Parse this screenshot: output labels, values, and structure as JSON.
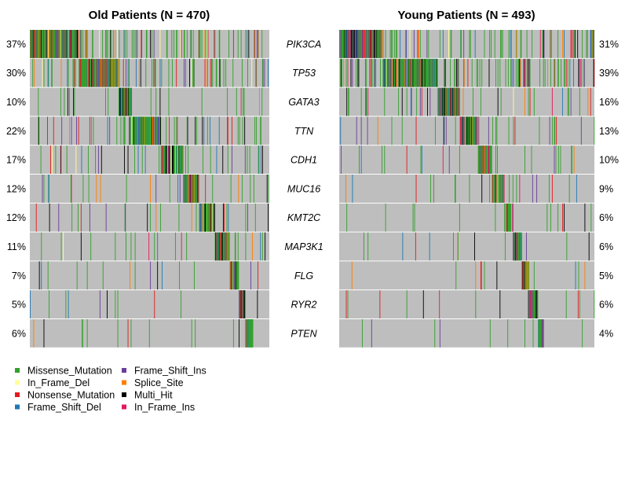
{
  "chart_data": {
    "type": "oncoplot",
    "genes": [
      "PIK3CA",
      "TP53",
      "GATA3",
      "TTN",
      "CDH1",
      "MUC16",
      "KMT2C",
      "MAP3K1",
      "FLG",
      "RYR2",
      "PTEN"
    ],
    "panels": [
      {
        "title": "Old Patients (N = 470)",
        "n": 470,
        "percent_labels": [
          "37%",
          "30%",
          "10%",
          "22%",
          "17%",
          "12%",
          "12%",
          "11%",
          "7%",
          "5%",
          "6%"
        ],
        "percent_values": [
          37,
          30,
          10,
          22,
          17,
          12,
          12,
          11,
          7,
          5,
          6
        ]
      },
      {
        "title": "Young Patients (N = 493)",
        "n": 493,
        "percent_labels": [
          "31%",
          "39%",
          "16%",
          "13%",
          "10%",
          "9%",
          "6%",
          "6%",
          "5%",
          "6%",
          "4%"
        ],
        "percent_values": [
          31,
          39,
          16,
          13,
          10,
          9,
          6,
          6,
          5,
          6,
          4
        ]
      }
    ],
    "legend": [
      {
        "label": "Missense_Mutation",
        "color": "#33a02c"
      },
      {
        "label": "In_Frame_Del",
        "color": "#ffff99"
      },
      {
        "label": "Nonsense_Mutation",
        "color": "#e31a1c"
      },
      {
        "label": "Frame_Shift_Del",
        "color": "#1f78b4"
      },
      {
        "label": "Frame_Shift_Ins",
        "color": "#6a3d9a"
      },
      {
        "label": "Splice_Site",
        "color": "#ff7f00"
      },
      {
        "label": "Multi_Hit",
        "color": "#000000"
      },
      {
        "label": "In_Frame_Ins",
        "color": "#e31a5a"
      }
    ],
    "background_color": "#bebebe"
  }
}
